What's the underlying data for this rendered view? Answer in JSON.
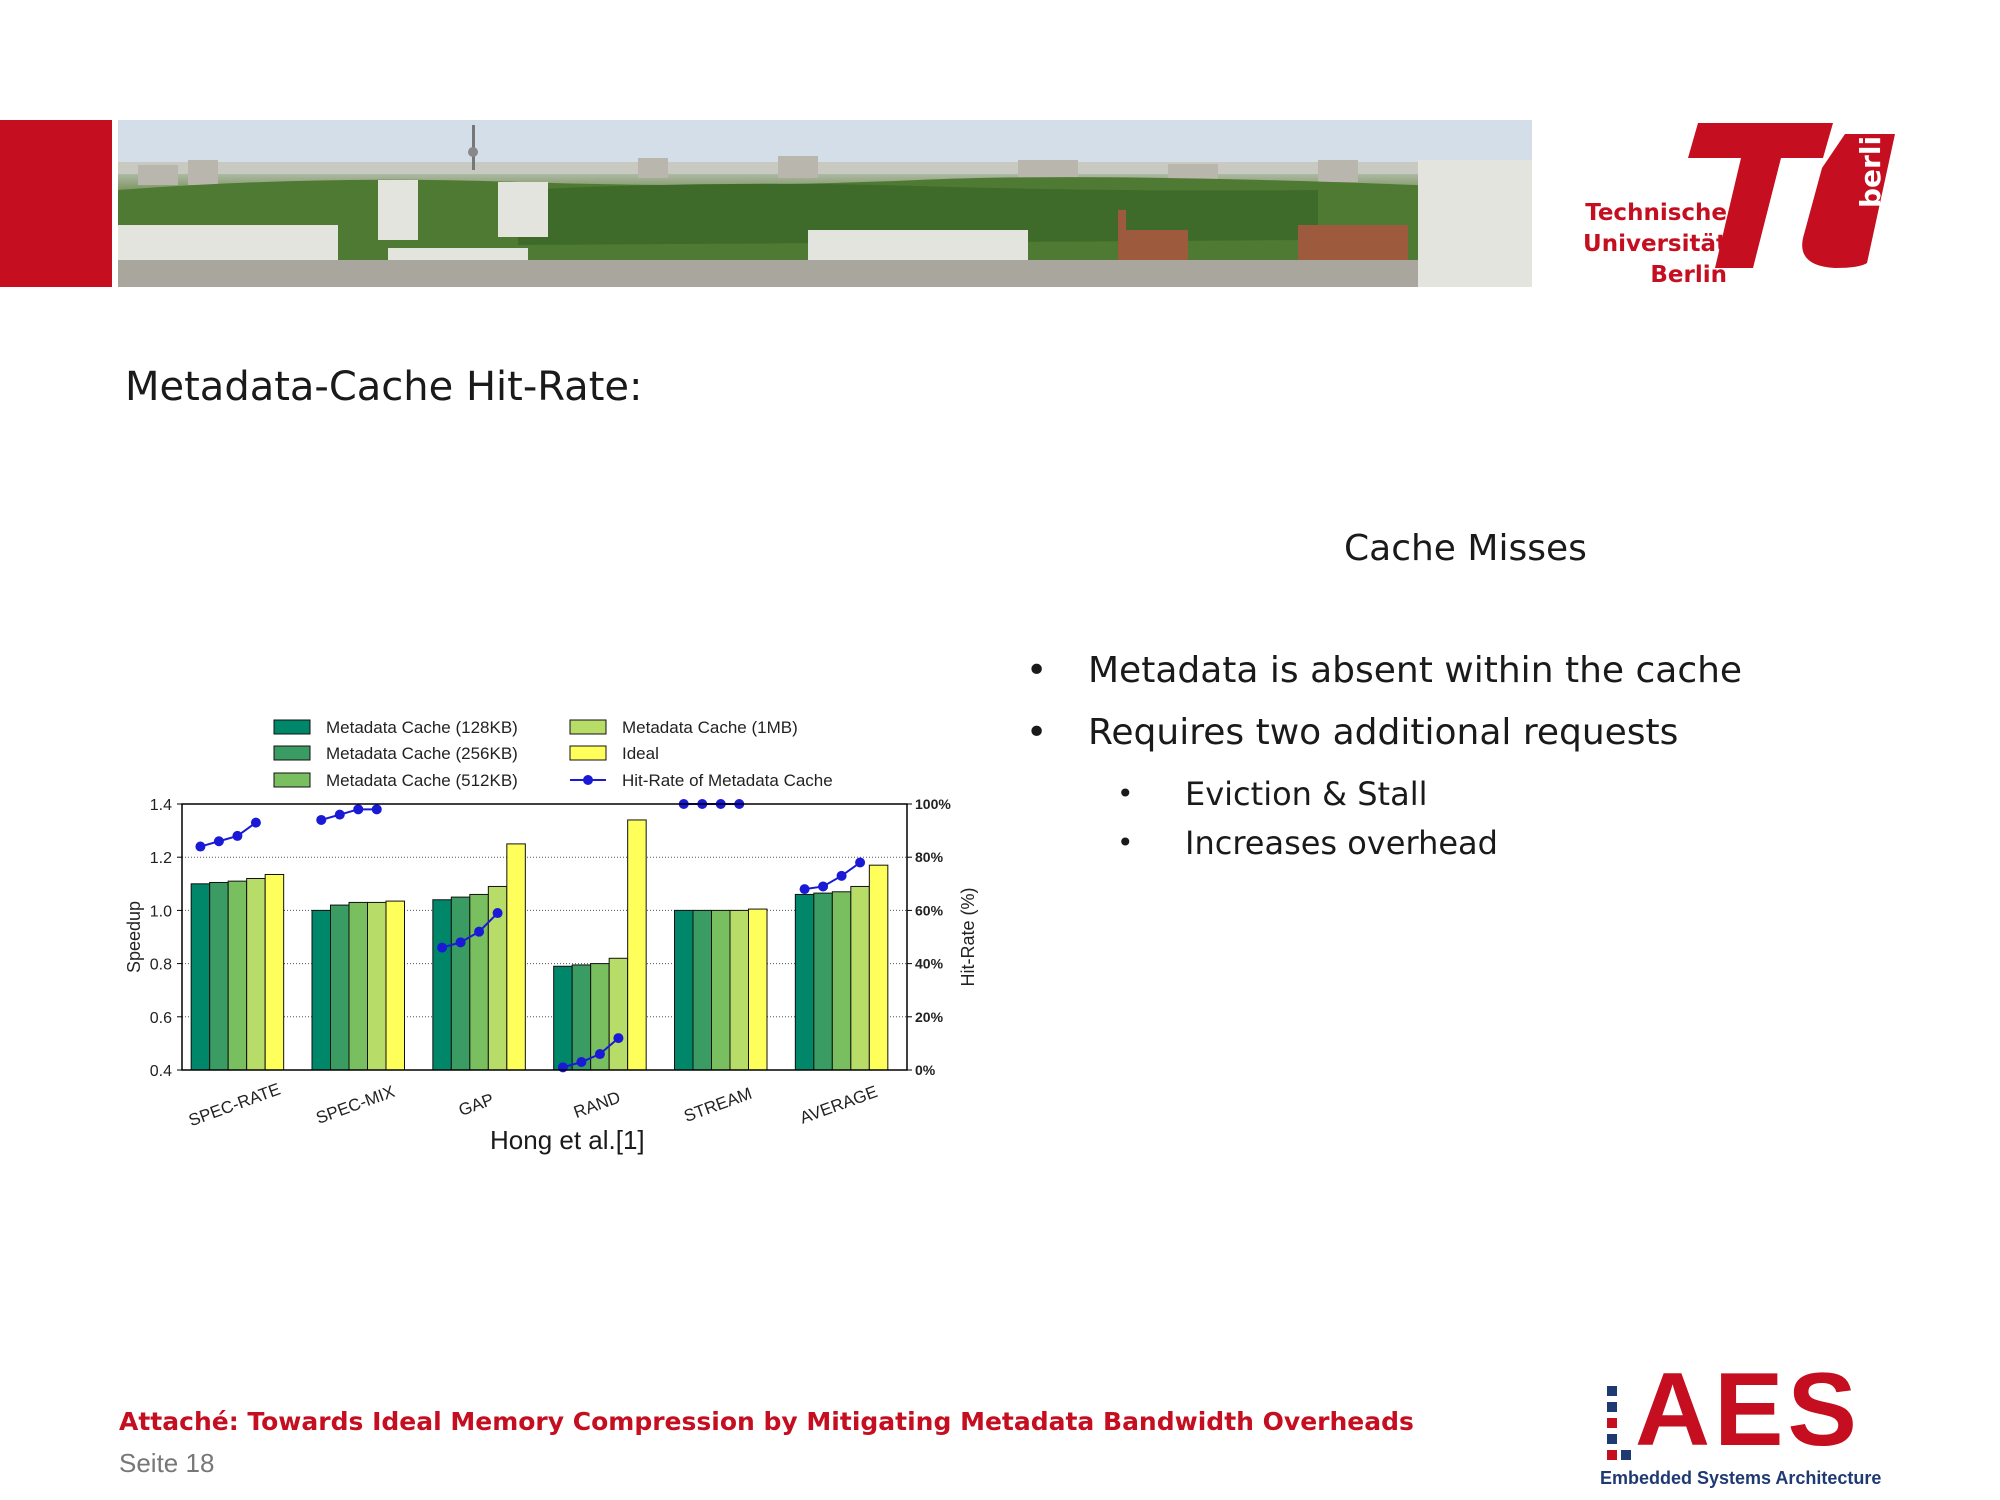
{
  "header": {
    "logo_lines": [
      "Technische",
      "Universität",
      "Berlin"
    ],
    "logo_vertical": "berlin",
    "brand_color": "#c50e1f"
  },
  "slide": {
    "title": "Metadata-Cache Hit-Rate:",
    "section_heading": "Cache Misses",
    "bullets": [
      "Metadata is absent within the cache",
      "Requires two additional requests"
    ],
    "sub_bullets": [
      "Eviction & Stall",
      "Increases overhead"
    ],
    "chart_caption": "Hong et al.[1]"
  },
  "footer": {
    "paper_title": "Attaché: Towards Ideal Memory Compression by Mitigating Metadata Bandwidth Overheads",
    "page_label": "Seite 18",
    "aes_logo": "AES",
    "aes_subtitle": "Embedded Systems Architecture"
  },
  "chart_data": {
    "type": "bar",
    "categories": [
      "SPEC-RATE",
      "SPEC-MIX",
      "GAP",
      "RAND",
      "STREAM",
      "AVERAGE"
    ],
    "ylabel": "Speedup",
    "ylabel_right": "Hit-Rate (%)",
    "ylim": [
      0.4,
      1.4
    ],
    "yticks": [
      "0.4",
      "0.6",
      "0.8",
      "1.0",
      "1.2",
      "1.4"
    ],
    "ylim_right": [
      0,
      100
    ],
    "yticks_right": [
      "0%",
      "20%",
      "40%",
      "60%",
      "80%",
      "100%"
    ],
    "grid": "horizontal dotted",
    "legend_position": "top",
    "series": [
      {
        "name": "Metadata Cache (128KB)",
        "color": "#00876a",
        "values": [
          1.1,
          1.0,
          1.04,
          0.79,
          1.0,
          1.06
        ]
      },
      {
        "name": "Metadata Cache (256KB)",
        "color": "#3a9c62",
        "values": [
          1.105,
          1.02,
          1.05,
          0.795,
          1.0,
          1.065
        ]
      },
      {
        "name": "Metadata Cache (512KB)",
        "color": "#79bf5f",
        "values": [
          1.11,
          1.03,
          1.06,
          0.8,
          1.0,
          1.07
        ]
      },
      {
        "name": "Metadata Cache (1MB)",
        "color": "#b8dc68",
        "values": [
          1.12,
          1.03,
          1.09,
          0.82,
          1.0,
          1.09
        ]
      },
      {
        "name": "Ideal",
        "color": "#ffff5c",
        "values": [
          1.135,
          1.035,
          1.25,
          1.34,
          1.005,
          1.17
        ]
      }
    ],
    "line_series": {
      "name": "Hit-Rate of Metadata Cache",
      "color": "#1a1ad6",
      "values": [
        [
          84,
          86,
          88,
          93
        ],
        [
          94,
          96,
          98,
          98
        ],
        [
          46,
          48,
          52,
          59
        ],
        [
          1,
          3,
          6,
          12
        ],
        [
          100,
          100,
          100,
          100
        ],
        [
          68,
          69,
          73,
          78
        ]
      ]
    }
  }
}
